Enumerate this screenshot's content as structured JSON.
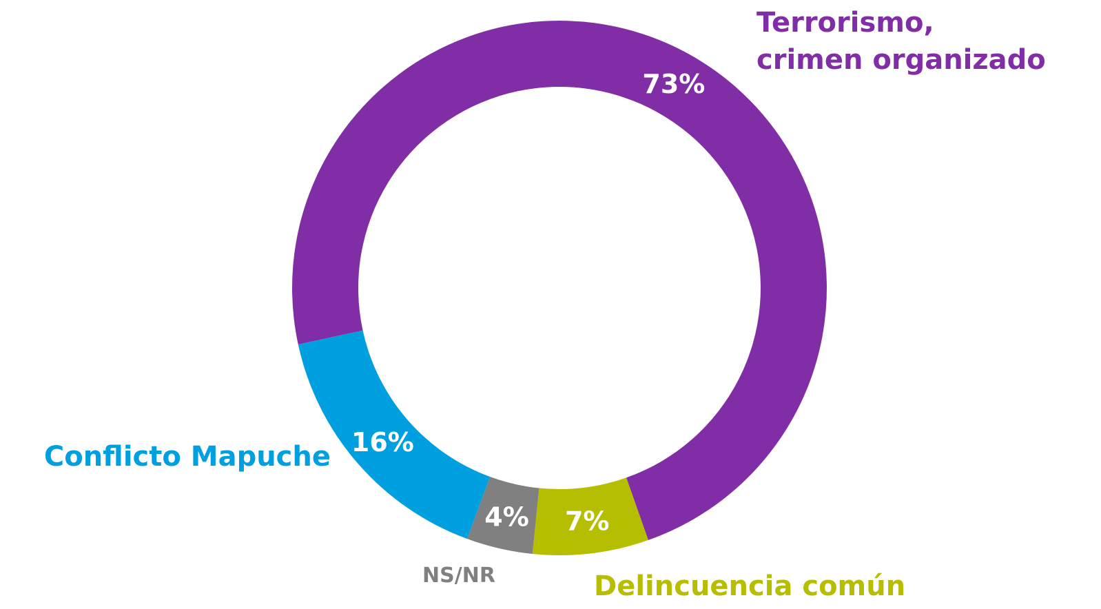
{
  "chart_data": {
    "type": "donut",
    "categories": [
      "Terrorismo,\ncrimen organizado",
      "Delincuencia común",
      "NS/NR",
      "Conflicto Mapuche"
    ],
    "values": [
      73,
      7,
      4,
      16
    ],
    "value_labels": [
      "73%",
      "7%",
      "4%",
      "16%"
    ],
    "colors": [
      "#812ea6",
      "#b5be00",
      "#808080",
      "#009fdf"
    ]
  }
}
